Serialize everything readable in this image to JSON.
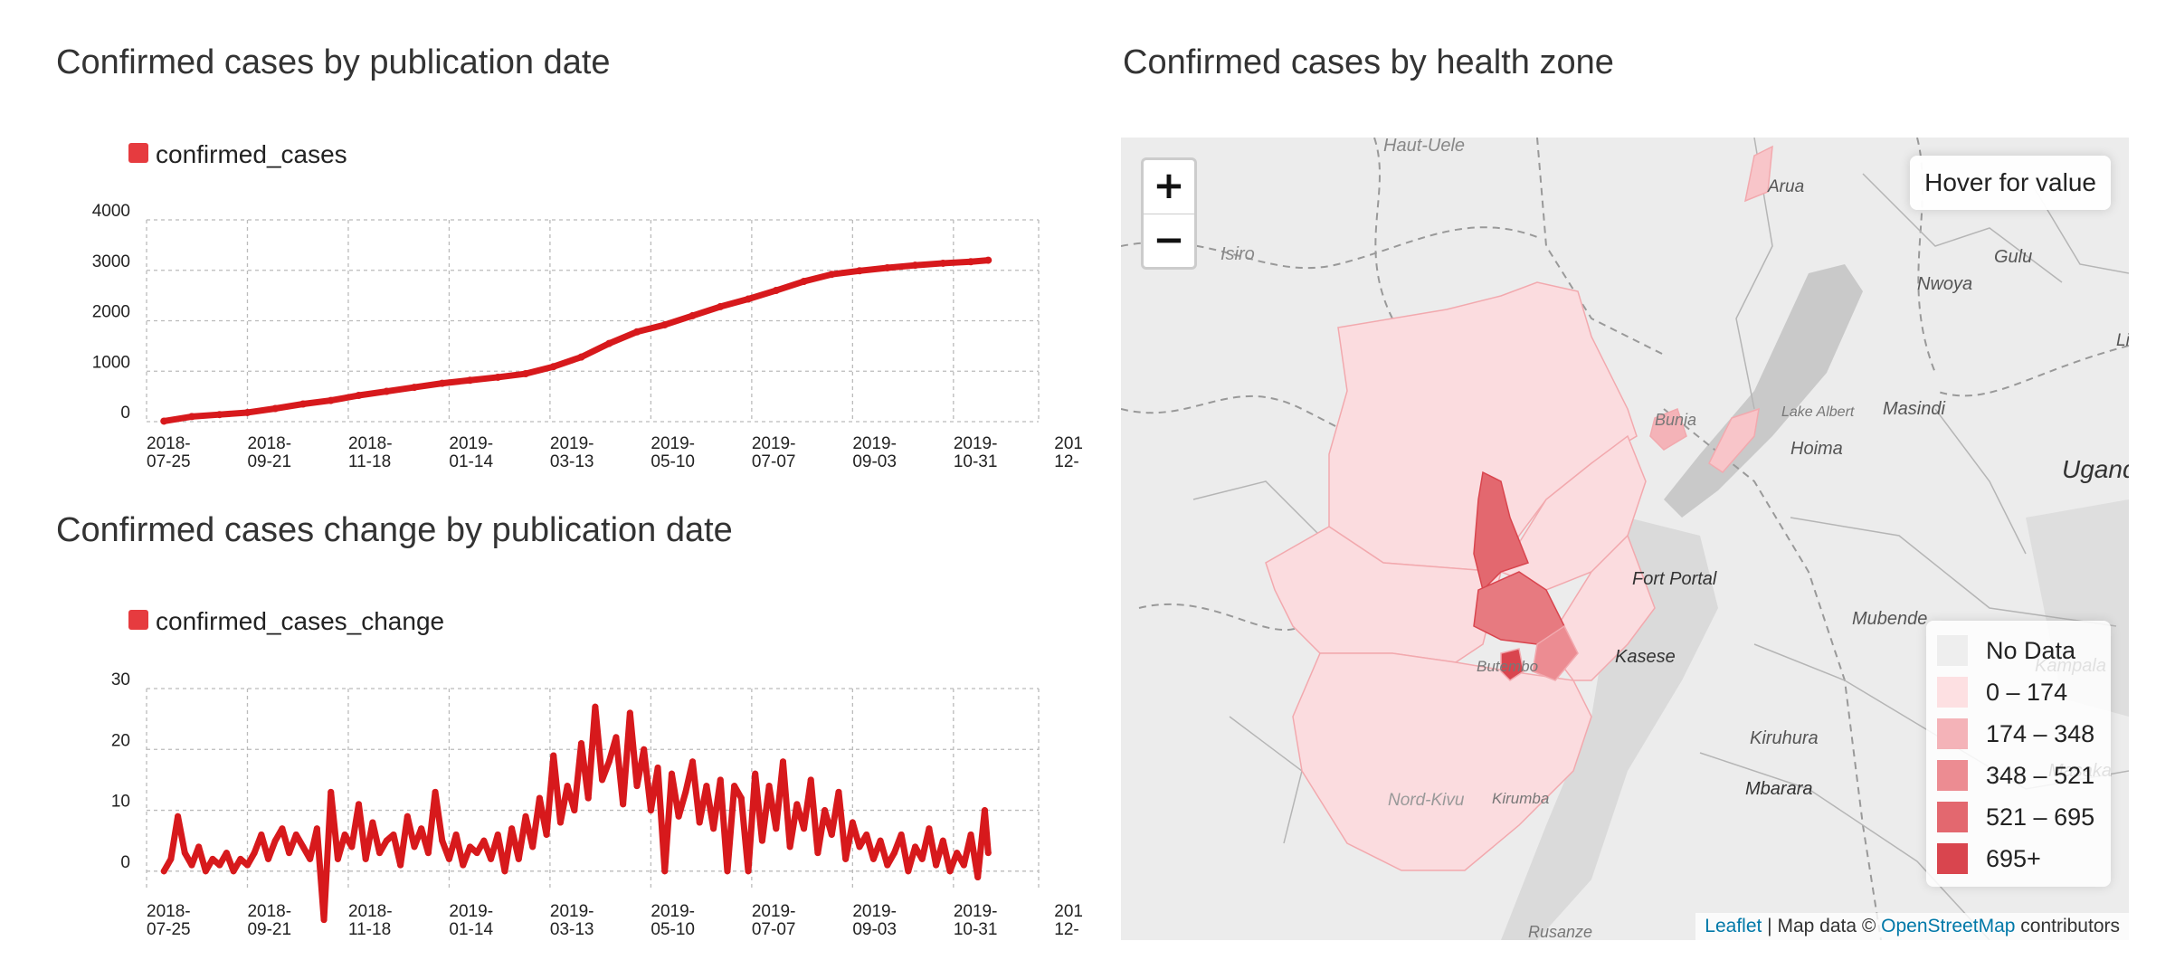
{
  "titles": {
    "cumulative": "Confirmed cases by publication date",
    "change": "Confirmed cases change by publication date",
    "map": "Confirmed cases by health zone"
  },
  "colors": {
    "series": "#d7191c",
    "legend_swatch": "#e63b3f",
    "grid": "#bbbbbb"
  },
  "chart_data": [
    {
      "type": "line",
      "title": "Confirmed cases by publication date",
      "legend_position": "top-left",
      "grid": true,
      "series": [
        {
          "name": "confirmed_cases",
          "x": [
            "2018-08-04",
            "2018-08-20",
            "2018-09-05",
            "2018-09-21",
            "2018-10-07",
            "2018-10-23",
            "2018-11-08",
            "2018-11-24",
            "2018-12-10",
            "2018-12-26",
            "2019-01-11",
            "2019-01-27",
            "2019-02-12",
            "2019-02-28",
            "2019-03-16",
            "2019-04-01",
            "2019-04-17",
            "2019-05-03",
            "2019-05-19",
            "2019-06-04",
            "2019-06-20",
            "2019-07-06",
            "2019-07-22",
            "2019-08-07",
            "2019-08-23",
            "2019-09-08",
            "2019-09-24",
            "2019-10-10",
            "2019-10-26",
            "2019-11-11",
            "2019-11-21"
          ],
          "values": [
            10,
            100,
            140,
            180,
            260,
            350,
            420,
            520,
            600,
            680,
            760,
            820,
            880,
            950,
            1090,
            1280,
            1550,
            1780,
            1920,
            2100,
            2280,
            2430,
            2600,
            2780,
            2920,
            2990,
            3050,
            3100,
            3140,
            3170,
            3200
          ]
        }
      ],
      "x_ticks": [
        "2018-\n07-25",
        "2018-\n09-21",
        "2018-\n11-18",
        "2019-\n01-14",
        "2019-\n03-13",
        "2019-\n05-10",
        "2019-\n07-07",
        "2019-\n09-03",
        "2019-\n10-31",
        "201\n12-"
      ],
      "y_ticks": [
        0,
        1000,
        2000,
        3000,
        4000
      ],
      "ylim": [
        0,
        4000
      ]
    },
    {
      "type": "line",
      "title": "Confirmed cases change by publication date",
      "legend_position": "top-left",
      "grid": true,
      "series": [
        {
          "name": "confirmed_cases_change",
          "x": [
            "2018-08-04",
            "2018-08-08",
            "2018-08-12",
            "2018-08-16",
            "2018-08-20",
            "2018-08-24",
            "2018-08-28",
            "2018-09-01",
            "2018-09-05",
            "2018-09-09",
            "2018-09-13",
            "2018-09-17",
            "2018-09-21",
            "2018-09-25",
            "2018-09-29",
            "2018-10-03",
            "2018-10-07",
            "2018-10-11",
            "2018-10-15",
            "2018-10-19",
            "2018-10-23",
            "2018-10-27",
            "2018-10-31",
            "2018-11-04",
            "2018-11-08",
            "2018-11-12",
            "2018-11-16",
            "2018-11-20",
            "2018-11-24",
            "2018-11-28",
            "2018-12-02",
            "2018-12-06",
            "2018-12-10",
            "2018-12-14",
            "2018-12-18",
            "2018-12-22",
            "2018-12-26",
            "2018-12-30",
            "2019-01-03",
            "2019-01-07",
            "2019-01-11",
            "2019-01-15",
            "2019-01-19",
            "2019-01-23",
            "2019-01-27",
            "2019-01-31",
            "2019-02-04",
            "2019-02-08",
            "2019-02-12",
            "2019-02-16",
            "2019-02-20",
            "2019-02-24",
            "2019-02-28",
            "2019-03-04",
            "2019-03-08",
            "2019-03-12",
            "2019-03-16",
            "2019-03-20",
            "2019-03-24",
            "2019-03-28",
            "2019-04-01",
            "2019-04-05",
            "2019-04-09",
            "2019-04-13",
            "2019-04-17",
            "2019-04-21",
            "2019-04-25",
            "2019-04-29",
            "2019-05-03",
            "2019-05-07",
            "2019-05-11",
            "2019-05-15",
            "2019-05-19",
            "2019-05-23",
            "2019-05-27",
            "2019-05-31",
            "2019-06-04",
            "2019-06-08",
            "2019-06-12",
            "2019-06-16",
            "2019-06-20",
            "2019-06-24",
            "2019-06-28",
            "2019-07-02",
            "2019-07-06",
            "2019-07-10",
            "2019-07-14",
            "2019-07-18",
            "2019-07-22",
            "2019-07-26",
            "2019-07-30",
            "2019-08-03",
            "2019-08-07",
            "2019-08-11",
            "2019-08-15",
            "2019-08-19",
            "2019-08-23",
            "2019-08-27",
            "2019-08-31",
            "2019-09-04",
            "2019-09-08",
            "2019-09-12",
            "2019-09-16",
            "2019-09-20",
            "2019-09-24",
            "2019-09-28",
            "2019-10-02",
            "2019-10-06",
            "2019-10-10",
            "2019-10-14",
            "2019-10-18",
            "2019-10-22",
            "2019-10-26",
            "2019-10-30",
            "2019-11-03",
            "2019-11-07",
            "2019-11-11",
            "2019-11-15",
            "2019-11-19",
            "2019-11-21"
          ],
          "values": [
            0,
            2,
            9,
            3,
            1,
            4,
            0,
            2,
            1,
            3,
            0,
            2,
            1,
            3,
            6,
            2,
            5,
            7,
            3,
            6,
            4,
            2,
            7,
            -8,
            13,
            2,
            6,
            4,
            11,
            2,
            8,
            3,
            5,
            6,
            1,
            9,
            4,
            7,
            3,
            13,
            5,
            2,
            6,
            1,
            4,
            3,
            5,
            2,
            6,
            0,
            7,
            2,
            9,
            4,
            12,
            6,
            19,
            8,
            14,
            10,
            21,
            12,
            27,
            15,
            18,
            22,
            11,
            26,
            14,
            20,
            10,
            17,
            0,
            16,
            9,
            13,
            18,
            8,
            14,
            7,
            15,
            0,
            14,
            12,
            0,
            16,
            5,
            14,
            7,
            18,
            4,
            11,
            7,
            15,
            3,
            10,
            6,
            13,
            2,
            8,
            4,
            6,
            2,
            5,
            1,
            3,
            6,
            0,
            4,
            2,
            7,
            1,
            5,
            0,
            3,
            1,
            6,
            -1,
            10,
            3
          ]
        }
      ],
      "x_ticks": [
        "2018-\n07-25",
        "2018-\n09-21",
        "2018-\n11-18",
        "2019-\n01-14",
        "2019-\n03-13",
        "2019-\n05-10",
        "2019-\n07-07",
        "2019-\n09-03",
        "2019-\n10-31",
        "201\n12-"
      ],
      "y_ticks": [
        0,
        10,
        20,
        30
      ],
      "ylim": [
        -3,
        30
      ]
    }
  ],
  "map": {
    "zoom_in": "+",
    "zoom_out": "−",
    "hover_hint": "Hover for value",
    "legend": [
      {
        "label": "No Data",
        "color": "#eeeeee"
      },
      {
        "label": "0 – 174",
        "color": "#fde0e2"
      },
      {
        "label": "174 – 348",
        "color": "#f4b3b8"
      },
      {
        "label": "348 – 521",
        "color": "#ec8c92"
      },
      {
        "label": "521 – 695",
        "color": "#e3686f"
      },
      {
        "label": "695+",
        "color": "#d9454e"
      }
    ],
    "attribution": {
      "leaflet": "Leaflet",
      "sep": " | Map data © ",
      "osm": "OpenStreetMap",
      "suffix": " contributors"
    },
    "places": [
      {
        "name": "Haut-Uele"
      },
      {
        "name": "Arua"
      },
      {
        "name": "Gulu"
      },
      {
        "name": "Nwoya"
      },
      {
        "name": "Lira"
      },
      {
        "name": "Isiro"
      },
      {
        "name": "Masindi"
      },
      {
        "name": "Hoima"
      },
      {
        "name": "Lake Albert"
      },
      {
        "name": "Bunia"
      },
      {
        "name": "Uganda"
      },
      {
        "name": "Fort Portal"
      },
      {
        "name": "Mubende"
      },
      {
        "name": "Kasese"
      },
      {
        "name": "Kampala"
      },
      {
        "name": "Butembo"
      },
      {
        "name": "Kiruhura"
      },
      {
        "name": "Mbarara"
      },
      {
        "name": "Masaka"
      },
      {
        "name": "Nord-Kivu"
      },
      {
        "name": "Kirumba"
      },
      {
        "name": "Rusanze"
      }
    ]
  }
}
